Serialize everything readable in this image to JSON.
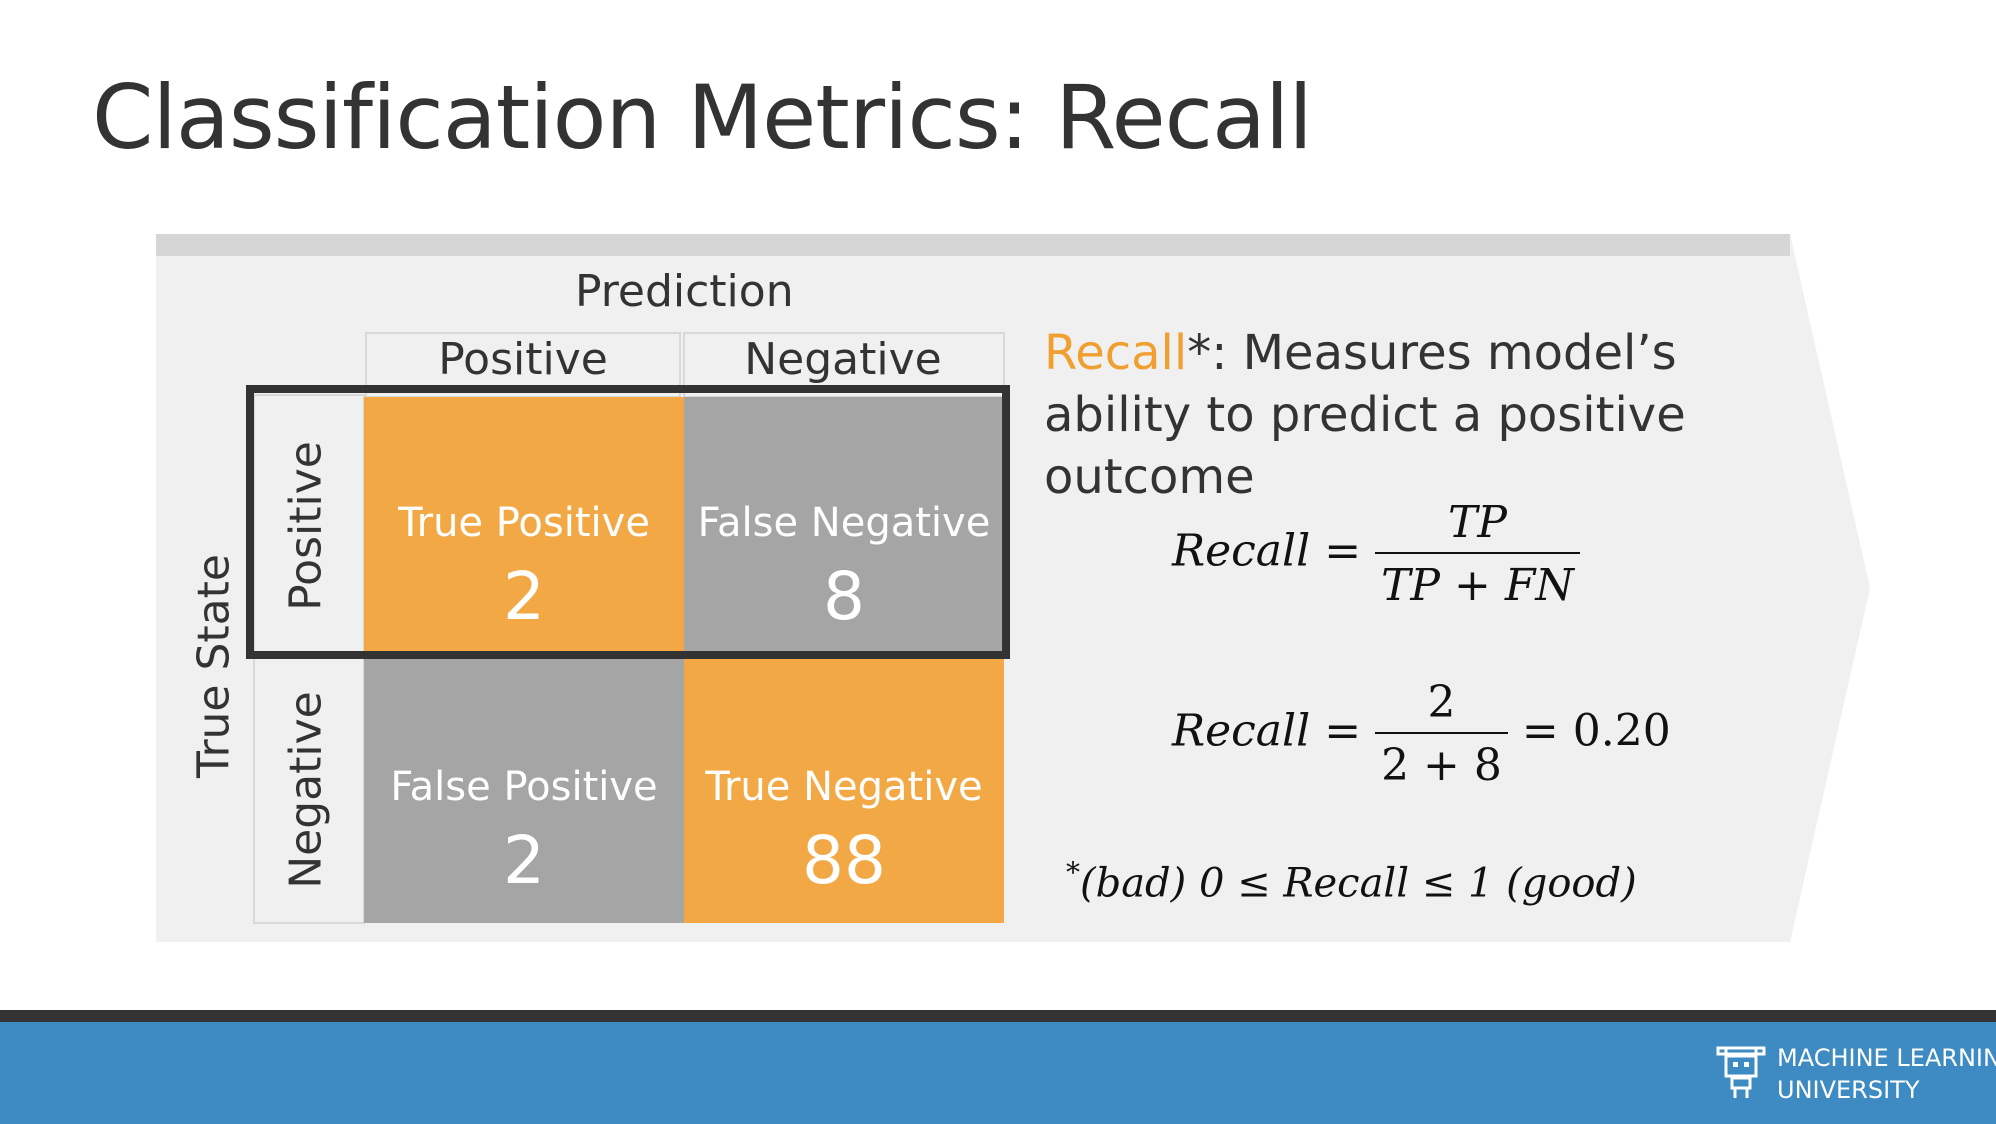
{
  "title": "Classification Metrics: Recall",
  "matrix": {
    "axis_top": "Prediction",
    "axis_left": "True State",
    "col_headers": [
      "Positive",
      "Negative"
    ],
    "row_headers": [
      "Positive",
      "Negative"
    ],
    "cells": [
      {
        "name": "True Positive",
        "value": "2",
        "color": "#f2a945"
      },
      {
        "name": "False Negative",
        "value": "8",
        "color": "#a5a5a5"
      },
      {
        "name": "False Positive",
        "value": "2",
        "color": "#a5a5a5"
      },
      {
        "name": "True Negative",
        "value": "88",
        "color": "#f2a945"
      }
    ]
  },
  "description": {
    "term": "Recall",
    "rest": "*: Measures model’s ability to predict a positive outcome"
  },
  "formula1": {
    "lhs": "Recall",
    "eq": "=",
    "numerator": "TP",
    "denominator": "TP + FN"
  },
  "formula2": {
    "lhs": "Recall",
    "eq": "=",
    "numerator": "2",
    "denominator": "2 + 8",
    "result": "= 0.20"
  },
  "formula3": {
    "star": "*",
    "bad": "(bad)",
    "middle": "0 ≤ Recall ≤ 1",
    "good": "(good)"
  },
  "footer": {
    "line1": "MACHINE LEARNING",
    "line2": "UNIVERSITY"
  },
  "colors": {
    "accent_orange": "#f0a030",
    "footer_blue": "#3d8bc2",
    "panel_gray": "#f0f0f0"
  },
  "icons": [
    "robot-logo-icon"
  ]
}
